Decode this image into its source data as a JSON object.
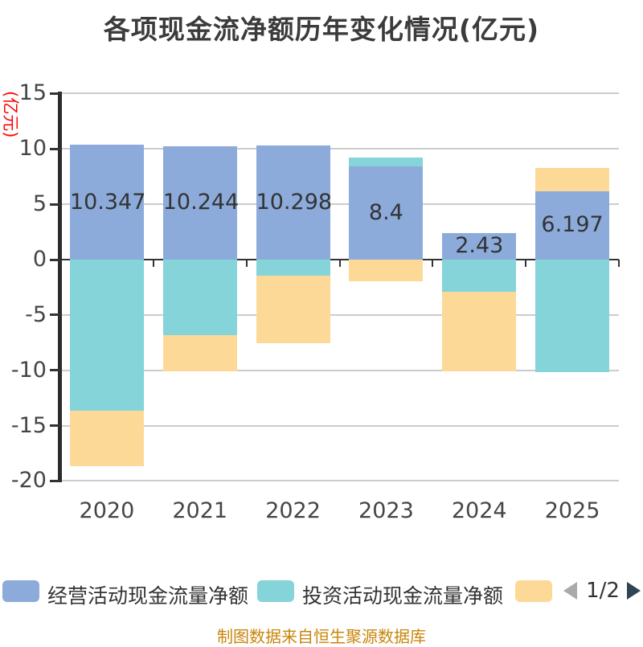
{
  "title": "各项现金流净额历年变化情况(亿元)",
  "y_axis_name": "(亿元)",
  "footer": "制图数据来自恒生聚源数据库",
  "legend": {
    "items": [
      {
        "label": "经营活动现金流量净额",
        "color": "#8cabdb"
      },
      {
        "label": "投资活动现金流量净额",
        "color": "#84d4d9"
      },
      {
        "label": "",
        "color": "#fdd998"
      }
    ],
    "pagination": {
      "prev_icon": "left-triangle",
      "next_icon": "right-triangle",
      "page_text": "1/2",
      "prev_color": "#aaaaaa",
      "next_color": "#2f4554"
    }
  },
  "colors": {
    "operating_bar": "#8cabdb",
    "investing_bar": "#84d4d9",
    "third_bar": "#fdd998",
    "grid": "#cccccc",
    "axis": "#2b2b2b",
    "text": "#454545",
    "y_name_red": "#fe0404",
    "footer_text": "#c8860b"
  },
  "chart_data": {
    "type": "bar",
    "stacked": true,
    "title": "各项现金流净额历年变化情况(亿元)",
    "xlabel": "",
    "ylabel": "(亿元)",
    "categories": [
      "2020",
      "2021",
      "2022",
      "2023",
      "2024",
      "2025"
    ],
    "series": [
      {
        "name": "经营活动现金流量净额",
        "color": "#8cabdb",
        "values": [
          10.347,
          10.244,
          10.298,
          8.4,
          2.43,
          6.197
        ],
        "labels": [
          "10.347",
          "10.244",
          "10.298",
          "8.4",
          "2.43",
          "6.197"
        ]
      },
      {
        "name": "投资活动现金流量净额",
        "color": "#84d4d9",
        "values": [
          -13.65,
          -6.8,
          -1.45,
          0.8,
          -2.93,
          -10.19
        ]
      },
      {
        "name": "",
        "color": "#fdd998",
        "values": [
          -5.01,
          -3.27,
          -6.08,
          -1.96,
          -7.14,
          2.06
        ]
      }
    ],
    "ylim": [
      -20,
      15
    ],
    "yticks": [
      15,
      10,
      5,
      0,
      -5,
      -10,
      -15,
      -20
    ],
    "grid": true,
    "legend_position": "bottom",
    "legend_page": "1/2"
  }
}
